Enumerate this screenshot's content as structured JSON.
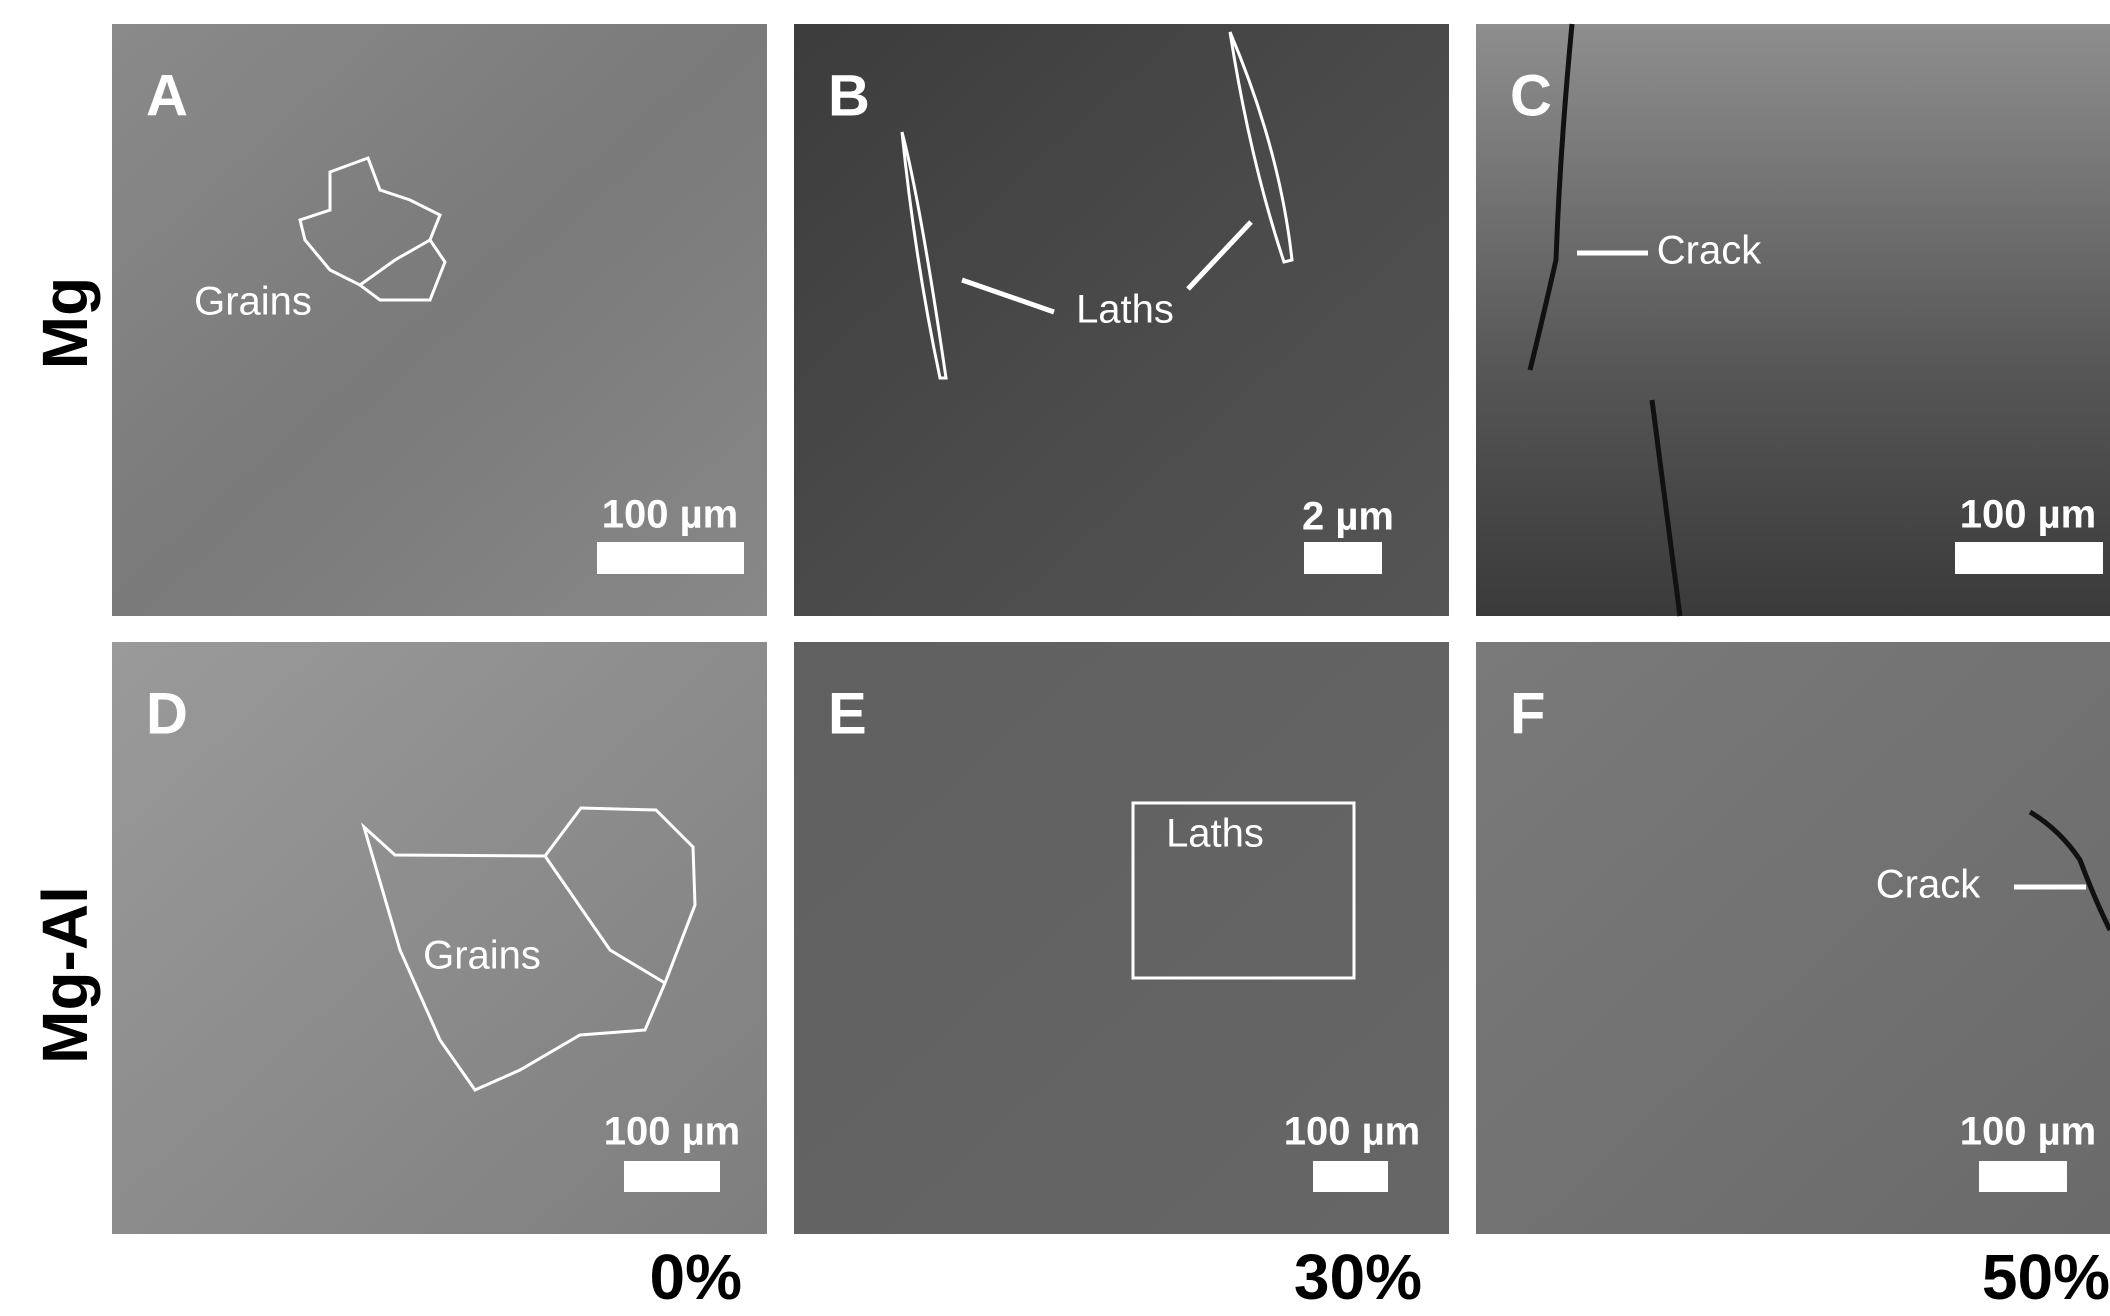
{
  "row_labels": [
    "Mg",
    "Mg-Al"
  ],
  "column_labels": [
    "0%",
    "30%",
    "50%"
  ],
  "panels": [
    {
      "letter": "A",
      "scale_bar": "100 µm",
      "annotations": [
        "Grains"
      ]
    },
    {
      "letter": "B",
      "scale_bar": "2 µm",
      "annotations": [
        "Laths"
      ]
    },
    {
      "letter": "C",
      "scale_bar": "100 µm",
      "annotations": [
        "Crack"
      ]
    },
    {
      "letter": "D",
      "scale_bar": "100 µm",
      "annotations": [
        "Grains"
      ]
    },
    {
      "letter": "E",
      "scale_bar": "100 µm",
      "annotations": [
        "Laths"
      ]
    },
    {
      "letter": "F",
      "scale_bar": "100 µm",
      "annotations": [
        "Crack"
      ]
    }
  ]
}
